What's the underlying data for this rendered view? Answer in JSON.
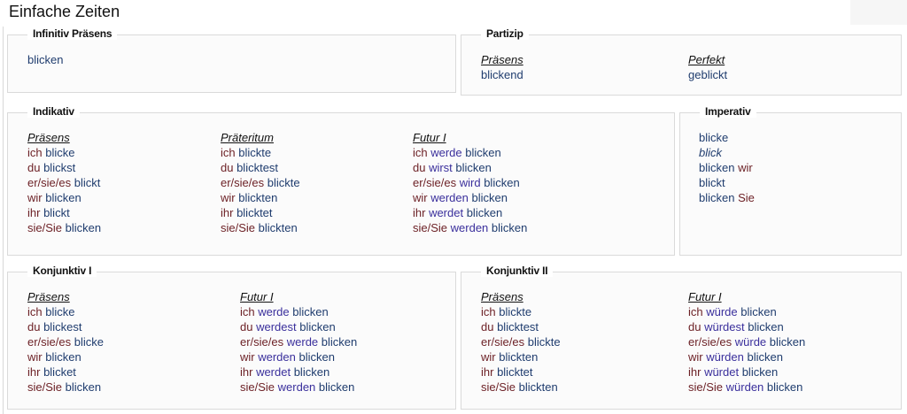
{
  "title": "Einfache Zeiten",
  "colors": {
    "pronoun": "#6b1f24",
    "auxiliary": "#3a2f9c",
    "verb": "#1f3c6e"
  },
  "sections": [
    {
      "legend": "Infinitiv Präsens",
      "columns": [
        {
          "header": "",
          "lines": [
            [
              [
                "v",
                "blicken"
              ]
            ]
          ]
        }
      ]
    },
    {
      "legend": "Partizip",
      "columns": [
        {
          "header": "Präsens",
          "lines": [
            [
              [
                "v",
                "blickend"
              ]
            ]
          ]
        },
        {
          "header": "Perfekt",
          "lines": [
            [
              [
                "v",
                "geblickt"
              ]
            ]
          ]
        }
      ]
    },
    {
      "legend": "Indikativ",
      "columns": [
        {
          "header": "Präsens",
          "lines": [
            [
              [
                "p",
                "ich "
              ],
              [
                "v",
                "blicke"
              ]
            ],
            [
              [
                "p",
                "du "
              ],
              [
                "v",
                "blickst"
              ]
            ],
            [
              [
                "p",
                "er/sie/es "
              ],
              [
                "v",
                "blickt"
              ]
            ],
            [
              [
                "p",
                "wir "
              ],
              [
                "v",
                "blicken"
              ]
            ],
            [
              [
                "p",
                "ihr "
              ],
              [
                "v",
                "blickt"
              ]
            ],
            [
              [
                "p",
                "sie/Sie "
              ],
              [
                "v",
                "blicken"
              ]
            ]
          ]
        },
        {
          "header": "Präteritum",
          "lines": [
            [
              [
                "p",
                "ich "
              ],
              [
                "v",
                "blickte"
              ]
            ],
            [
              [
                "p",
                "du "
              ],
              [
                "v",
                "blicktest"
              ]
            ],
            [
              [
                "p",
                "er/sie/es "
              ],
              [
                "v",
                "blickte"
              ]
            ],
            [
              [
                "p",
                "wir "
              ],
              [
                "v",
                "blickten"
              ]
            ],
            [
              [
                "p",
                "ihr "
              ],
              [
                "v",
                "blicktet"
              ]
            ],
            [
              [
                "p",
                "sie/Sie "
              ],
              [
                "v",
                "blickten"
              ]
            ]
          ]
        },
        {
          "header": "Futur I",
          "lines": [
            [
              [
                "p",
                "ich "
              ],
              [
                "a",
                "werde "
              ],
              [
                "v",
                "blicken"
              ]
            ],
            [
              [
                "p",
                "du "
              ],
              [
                "a",
                "wirst "
              ],
              [
                "v",
                "blicken"
              ]
            ],
            [
              [
                "p",
                "er/sie/es "
              ],
              [
                "a",
                "wird "
              ],
              [
                "v",
                "blicken"
              ]
            ],
            [
              [
                "p",
                "wir "
              ],
              [
                "a",
                "werden "
              ],
              [
                "v",
                "blicken"
              ]
            ],
            [
              [
                "p",
                "ihr "
              ],
              [
                "a",
                "werdet "
              ],
              [
                "v",
                "blicken"
              ]
            ],
            [
              [
                "p",
                "sie/Sie "
              ],
              [
                "a",
                "werden "
              ],
              [
                "v",
                "blicken"
              ]
            ]
          ]
        }
      ]
    },
    {
      "legend": "Imperativ",
      "columns": [
        {
          "header": "",
          "lines": [
            [
              [
                "v",
                "blicke"
              ]
            ],
            [
              [
                "i",
                "blick"
              ]
            ],
            [
              [
                "v",
                "blicken "
              ],
              [
                "p",
                "wir"
              ]
            ],
            [
              [
                "v",
                "blickt"
              ]
            ],
            [
              [
                "v",
                "blicken "
              ],
              [
                "p",
                "Sie"
              ]
            ]
          ]
        }
      ]
    },
    {
      "legend": "Konjunktiv I",
      "columns": [
        {
          "header": "Präsens",
          "lines": [
            [
              [
                "p",
                "ich "
              ],
              [
                "v",
                "blicke"
              ]
            ],
            [
              [
                "p",
                "du "
              ],
              [
                "v",
                "blickest"
              ]
            ],
            [
              [
                "p",
                "er/sie/es "
              ],
              [
                "v",
                "blicke"
              ]
            ],
            [
              [
                "p",
                "wir "
              ],
              [
                "v",
                "blicken"
              ]
            ],
            [
              [
                "p",
                "ihr "
              ],
              [
                "v",
                "blicket"
              ]
            ],
            [
              [
                "p",
                "sie/Sie "
              ],
              [
                "v",
                "blicken"
              ]
            ]
          ]
        },
        {
          "header": "Futur I",
          "lines": [
            [
              [
                "p",
                "ich "
              ],
              [
                "a",
                "werde "
              ],
              [
                "v",
                "blicken"
              ]
            ],
            [
              [
                "p",
                "du "
              ],
              [
                "a",
                "werdest "
              ],
              [
                "v",
                "blicken"
              ]
            ],
            [
              [
                "p",
                "er/sie/es "
              ],
              [
                "a",
                "werde "
              ],
              [
                "v",
                "blicken"
              ]
            ],
            [
              [
                "p",
                "wir "
              ],
              [
                "a",
                "werden "
              ],
              [
                "v",
                "blicken"
              ]
            ],
            [
              [
                "p",
                "ihr "
              ],
              [
                "a",
                "werdet "
              ],
              [
                "v",
                "blicken"
              ]
            ],
            [
              [
                "p",
                "sie/Sie "
              ],
              [
                "a",
                "werden "
              ],
              [
                "v",
                "blicken"
              ]
            ]
          ]
        }
      ]
    },
    {
      "legend": "Konjunktiv II",
      "columns": [
        {
          "header": "Präsens",
          "lines": [
            [
              [
                "p",
                "ich "
              ],
              [
                "v",
                "blickte"
              ]
            ],
            [
              [
                "p",
                "du "
              ],
              [
                "v",
                "blicktest"
              ]
            ],
            [
              [
                "p",
                "er/sie/es "
              ],
              [
                "v",
                "blickte"
              ]
            ],
            [
              [
                "p",
                "wir "
              ],
              [
                "v",
                "blickten"
              ]
            ],
            [
              [
                "p",
                "ihr "
              ],
              [
                "v",
                "blicktet"
              ]
            ],
            [
              [
                "p",
                "sie/Sie "
              ],
              [
                "v",
                "blickten"
              ]
            ]
          ]
        },
        {
          "header": "Futur I",
          "lines": [
            [
              [
                "p",
                "ich "
              ],
              [
                "a",
                "würde "
              ],
              [
                "v",
                "blicken"
              ]
            ],
            [
              [
                "p",
                "du "
              ],
              [
                "a",
                "würdest "
              ],
              [
                "v",
                "blicken"
              ]
            ],
            [
              [
                "p",
                "er/sie/es "
              ],
              [
                "a",
                "würde "
              ],
              [
                "v",
                "blicken"
              ]
            ],
            [
              [
                "p",
                "wir "
              ],
              [
                "a",
                "würden "
              ],
              [
                "v",
                "blicken"
              ]
            ],
            [
              [
                "p",
                "ihr "
              ],
              [
                "a",
                "würdet "
              ],
              [
                "v",
                "blicken"
              ]
            ],
            [
              [
                "p",
                "sie/Sie "
              ],
              [
                "a",
                "würden "
              ],
              [
                "v",
                "blicken"
              ]
            ]
          ]
        }
      ]
    }
  ]
}
